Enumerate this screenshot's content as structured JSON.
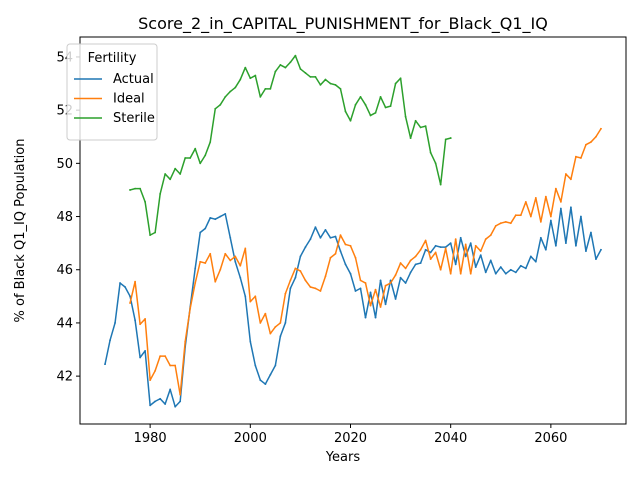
{
  "chart_data": {
    "type": "line",
    "title": "Score_2_in_CAPITAL_PUNISHMENT_for_Black_Q1_IQ",
    "xlabel": "Years",
    "ylabel": "% of Black Q1_IQ Population",
    "xlim": [
      1966,
      2075
    ],
    "ylim": [
      40.2,
      54.75
    ],
    "xticks": [
      1980,
      2000,
      2020,
      2040,
      2060
    ],
    "xtick_labels": [
      "1980",
      "2000",
      "2020",
      "2040",
      "2060"
    ],
    "yticks": [
      42,
      44,
      46,
      48,
      50,
      52,
      54
    ],
    "ytick_labels": [
      "42",
      "44",
      "46",
      "48",
      "50",
      "52",
      "54"
    ],
    "grid": false,
    "legend": {
      "title": "Fertility",
      "position": "top-left"
    },
    "series": [
      {
        "name": "Actual",
        "color": "#1f77b4",
        "x": [
          1971,
          1972,
          1973,
          1974,
          1975,
          1976,
          1977,
          1978,
          1979,
          1980,
          1981,
          1982,
          1983,
          1984,
          1985,
          1986,
          1987,
          1988,
          1989,
          1990,
          1991,
          1992,
          1993,
          1994,
          1995,
          1996,
          1997,
          1998,
          1999,
          2000,
          2001,
          2002,
          2003,
          2004,
          2005,
          2006,
          2007,
          2008,
          2009,
          2010,
          2011,
          2012,
          2013,
          2014,
          2015,
          2016,
          2017,
          2018,
          2019,
          2020,
          2021,
          2022,
          2023,
          2024,
          2025,
          2026,
          2027,
          2028,
          2029,
          2030,
          2031,
          2032,
          2033,
          2034,
          2035,
          2036,
          2037,
          2038,
          2039,
          2040,
          2041,
          2042,
          2043,
          2044,
          2045,
          2046,
          2047,
          2048,
          2049,
          2050,
          2051,
          2052,
          2053,
          2054,
          2055,
          2056,
          2057,
          2058,
          2059,
          2060,
          2061,
          2062,
          2063,
          2064,
          2065,
          2066,
          2067,
          2068,
          2069,
          2070
        ],
        "y": [
          42.45,
          43.35,
          44.0,
          45.5,
          45.35,
          45.0,
          44.1,
          42.7,
          42.95,
          40.9,
          41.05,
          41.15,
          40.95,
          41.5,
          40.85,
          41.05,
          43.1,
          44.6,
          46.05,
          47.4,
          47.55,
          47.95,
          47.9,
          48.0,
          48.1,
          47.2,
          46.3,
          45.7,
          45.0,
          43.3,
          42.4,
          41.85,
          41.7,
          42.05,
          42.4,
          43.5,
          44.0,
          45.3,
          45.7,
          46.5,
          46.85,
          47.15,
          47.6,
          47.2,
          47.5,
          47.2,
          47.25,
          46.7,
          46.2,
          45.85,
          45.2,
          45.3,
          44.2,
          45.15,
          44.2,
          45.6,
          44.7,
          45.6,
          44.9,
          45.7,
          45.5,
          45.9,
          46.2,
          46.25,
          46.75,
          46.65,
          46.9,
          46.85,
          46.85,
          47.0,
          46.2,
          47.2,
          46.5,
          47.0,
          46.1,
          46.55,
          45.9,
          46.35,
          45.85,
          46.1,
          45.85,
          46.0,
          45.9,
          46.15,
          46.05,
          46.5,
          46.3,
          47.2,
          46.75,
          47.85,
          46.9,
          48.3,
          47.0,
          48.35,
          46.9,
          48.0,
          46.7,
          47.4,
          46.4,
          46.75
        ]
      },
      {
        "name": "Ideal",
        "color": "#ff7f0e",
        "x": [
          1976,
          1977,
          1978,
          1979,
          1980,
          1981,
          1982,
          1983,
          1984,
          1985,
          1986,
          1987,
          1988,
          1989,
          1990,
          1991,
          1992,
          1993,
          1994,
          1995,
          1996,
          1997,
          1998,
          1999,
          2000,
          2001,
          2002,
          2003,
          2004,
          2005,
          2006,
          2007,
          2008,
          2009,
          2010,
          2011,
          2012,
          2013,
          2014,
          2015,
          2016,
          2017,
          2018,
          2019,
          2020,
          2021,
          2022,
          2023,
          2024,
          2025,
          2026,
          2027,
          2028,
          2029,
          2030,
          2031,
          2032,
          2033,
          2034,
          2035,
          2036,
          2037,
          2038,
          2039,
          2040,
          2041,
          2042,
          2043,
          2044,
          2045,
          2046,
          2047,
          2048,
          2049,
          2050,
          2051,
          2052,
          2053,
          2054,
          2055,
          2056,
          2057,
          2058,
          2059,
          2060,
          2061,
          2062,
          2063,
          2064,
          2065,
          2066,
          2067,
          2068,
          2069,
          2070
        ],
        "y": [
          44.75,
          45.55,
          43.95,
          44.15,
          41.85,
          42.2,
          42.75,
          42.75,
          42.4,
          42.4,
          41.3,
          43.3,
          44.55,
          45.5,
          46.3,
          46.25,
          46.6,
          45.55,
          46.0,
          46.6,
          46.35,
          46.5,
          46.15,
          46.8,
          44.8,
          45.0,
          44.0,
          44.35,
          43.6,
          43.85,
          44.0,
          45.1,
          45.6,
          46.05,
          45.95,
          45.6,
          45.35,
          45.3,
          45.2,
          45.75,
          46.45,
          46.6,
          47.3,
          46.95,
          46.9,
          46.45,
          45.6,
          45.5,
          44.65,
          45.25,
          44.6,
          45.4,
          45.5,
          45.8,
          46.25,
          46.05,
          46.35,
          46.5,
          46.75,
          47.1,
          46.4,
          46.65,
          46.0,
          46.8,
          45.85,
          47.15,
          45.85,
          46.95,
          45.85,
          46.9,
          46.7,
          47.15,
          47.3,
          47.65,
          47.75,
          47.8,
          47.75,
          48.05,
          48.05,
          48.55,
          48.0,
          48.7,
          47.8,
          48.75,
          48.0,
          49.05,
          48.55,
          49.6,
          49.4,
          50.25,
          50.2,
          50.7,
          50.8,
          51.0,
          51.3
        ]
      },
      {
        "name": "Sterile",
        "color": "#2ca02c",
        "x": [
          1976,
          1977,
          1978,
          1979,
          1980,
          1981,
          1982,
          1983,
          1984,
          1985,
          1986,
          1987,
          1988,
          1989,
          1990,
          1991,
          1992,
          1993,
          1994,
          1995,
          1996,
          1997,
          1998,
          1999,
          2000,
          2001,
          2002,
          2003,
          2004,
          2005,
          2006,
          2007,
          2008,
          2009,
          2010,
          2011,
          2012,
          2013,
          2014,
          2015,
          2016,
          2017,
          2018,
          2019,
          2020,
          2021,
          2022,
          2023,
          2024,
          2025,
          2026,
          2027,
          2028,
          2029,
          2030,
          2031,
          2032,
          2033,
          2034,
          2035,
          2036,
          2037,
          2038,
          2039,
          2040
        ],
        "y": [
          49.0,
          49.05,
          49.05,
          48.55,
          47.3,
          47.4,
          48.85,
          49.6,
          49.4,
          49.8,
          49.6,
          50.2,
          50.2,
          50.55,
          50.0,
          50.3,
          50.8,
          52.05,
          52.2,
          52.5,
          52.7,
          52.85,
          53.15,
          53.6,
          53.2,
          53.3,
          52.5,
          52.8,
          52.8,
          53.45,
          53.7,
          53.6,
          53.8,
          54.05,
          53.55,
          53.4,
          53.25,
          53.25,
          52.95,
          53.15,
          53.0,
          52.95,
          52.8,
          51.95,
          51.6,
          52.2,
          52.5,
          52.2,
          51.8,
          51.9,
          52.5,
          52.1,
          52.15,
          53.0,
          53.2,
          51.75,
          50.95,
          51.6,
          51.35,
          51.4,
          50.4,
          50.0,
          49.2,
          50.9,
          50.95
        ]
      }
    ]
  }
}
